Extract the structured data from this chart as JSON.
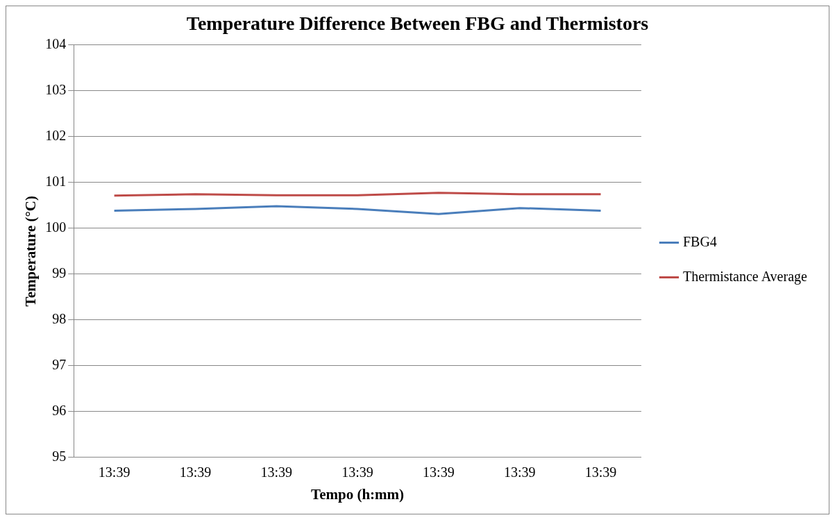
{
  "chart_data": {
    "type": "line",
    "title": "Temperature Difference Between FBG and Thermistors",
    "xlabel": "Tempo (h:mm)",
    "ylabel": "Temperature (°C)",
    "categories": [
      "13:39",
      "13:39",
      "13:39",
      "13:39",
      "13:39",
      "13:39",
      "13:39"
    ],
    "series": [
      {
        "name": "FBG4",
        "color": "#4a7ebb",
        "values": [
          100.38,
          100.42,
          100.48,
          100.42,
          100.31,
          100.44,
          100.38
        ]
      },
      {
        "name": "Thermistance Average",
        "color": "#be4b48",
        "values": [
          100.71,
          100.74,
          100.72,
          100.72,
          100.77,
          100.74,
          100.74
        ]
      }
    ],
    "ylim": [
      95,
      104
    ],
    "yticks": [
      95,
      96,
      97,
      98,
      99,
      100,
      101,
      102,
      103,
      104
    ],
    "grid": "y",
    "legend": "right",
    "marker": "none",
    "line_style": "solid"
  }
}
